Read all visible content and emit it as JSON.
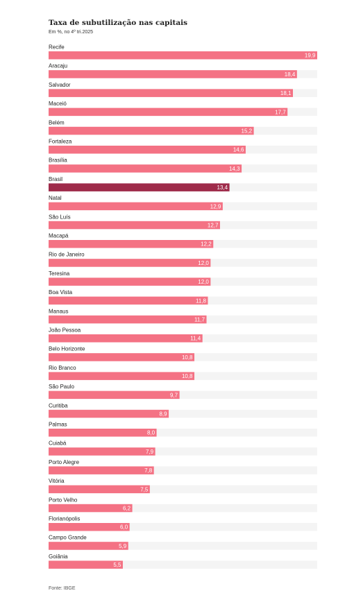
{
  "chart_data": {
    "type": "bar",
    "orientation": "horizontal",
    "title": "Taxa de subutilização nas capitais",
    "subtitle": "Em %, no 4º tri.2025",
    "source": "Fonte: IBGE",
    "xlim": [
      0,
      19.9
    ],
    "decimal_separator": ",",
    "colors": {
      "bar": "#f47284",
      "highlight": "#9e2b4a",
      "track": "#f4f4f4",
      "label": "#ffffff"
    },
    "highlight_category": "Brasil",
    "categories": [
      "Recife",
      "Aracaju",
      "Salvador",
      "Maceió",
      "Belém",
      "Fortaleza",
      "Brasília",
      "Brasil",
      "Natal",
      "São Luís",
      "Macapá",
      "Rio de Janeiro",
      "Teresina",
      "Boa Vista",
      "Manaus",
      "João Pessoa",
      "Belo Horizonte",
      "Rio Branco",
      "São Paulo",
      "Curitiba",
      "Palmas",
      "Cuiabá",
      "Porto Alegre",
      "Vitória",
      "Porto Velho",
      "Florianópolis",
      "Campo Grande",
      "Goiânia"
    ],
    "values": [
      19.9,
      18.4,
      18.1,
      17.7,
      15.2,
      14.6,
      14.3,
      13.4,
      12.9,
      12.7,
      12.2,
      12.0,
      12.0,
      11.8,
      11.7,
      11.4,
      10.8,
      10.8,
      9.7,
      8.9,
      8.0,
      7.9,
      7.8,
      7.5,
      6.2,
      6.0,
      5.9,
      5.5
    ]
  }
}
